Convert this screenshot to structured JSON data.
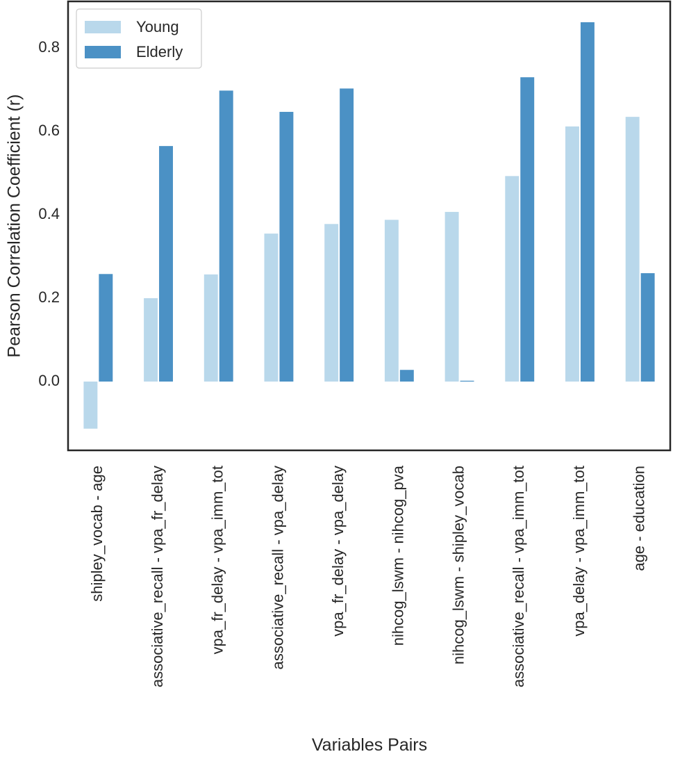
{
  "chart_data": {
    "type": "bar",
    "x_label": "Variables Pairs",
    "y_label": "Pearson Correlation Coefficient (r)",
    "categories": [
      "shipley_vocab - age",
      "associative_recall - vpa_fr_delay",
      "vpa_fr_delay - vpa_imm_tot",
      "associative_recall - vpa_delay",
      "vpa_fr_delay - vpa_delay",
      "nihcog_lswm - nihcog_pva",
      "nihcog_lswm - shipley_vocab",
      "associative_recall - vpa_imm_tot",
      "vpa_delay - vpa_imm_tot",
      "age - education"
    ],
    "series": [
      {
        "name": "Young",
        "color": "#b9d8eb",
        "values": [
          -0.113,
          0.2,
          0.257,
          0.355,
          0.378,
          0.388,
          0.407,
          0.493,
          0.612,
          0.635
        ]
      },
      {
        "name": "Elderly",
        "color": "#4b91c5",
        "values": [
          0.258,
          0.565,
          0.698,
          0.647,
          0.703,
          0.028,
          0.002,
          0.73,
          0.862,
          0.26
        ]
      }
    ],
    "ylim": [
      -0.165,
      0.912
    ],
    "yticks": [
      {
        "value": 0,
        "label": "0.0"
      },
      0.2,
      0.4,
      0.6,
      0.8
    ],
    "legend": "upper left"
  }
}
